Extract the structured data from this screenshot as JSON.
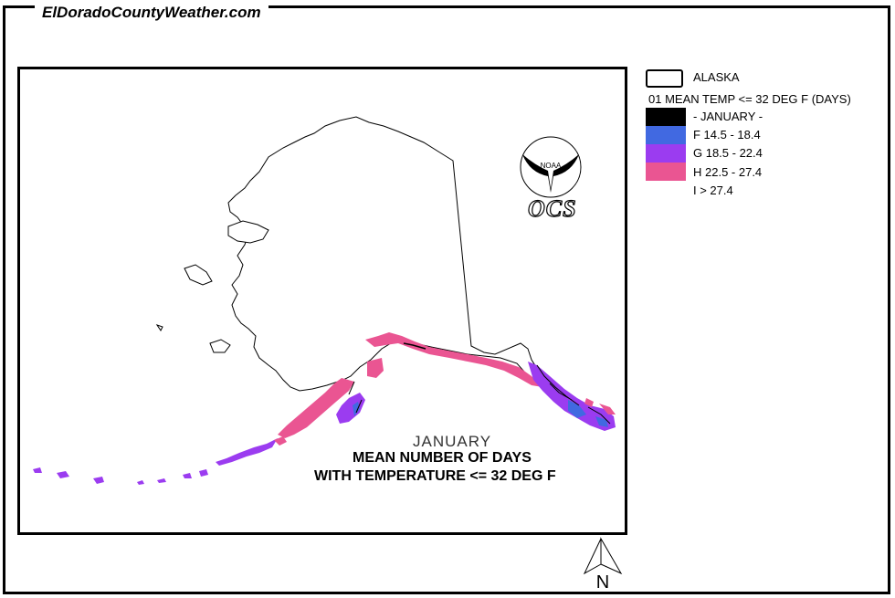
{
  "site_title": "ElDoradoCountyWeather.com",
  "map": {
    "caption_month": "JANUARY",
    "caption_line1": "MEAN NUMBER OF DAYS",
    "caption_line2": "WITH TEMPERATURE <= 32 DEG F",
    "logo_text": "NOAA",
    "logo_sub": "OCS",
    "north_label": "N"
  },
  "legend": {
    "region_label": "ALASKA",
    "title": "01 MEAN TEMP <= 32 DEG F (DAYS)",
    "items": [
      {
        "label": "- JANUARY -",
        "color": "#000000"
      },
      {
        "label": "F 14.5 - 18.4",
        "color": "#4169e1"
      },
      {
        "label": "G 18.5 - 22.4",
        "color": "#9b3cf0"
      },
      {
        "label": "H 22.5 - 27.4",
        "color": "#ea5592"
      },
      {
        "label": "I > 27.4",
        "color": "#ffffff"
      }
    ]
  }
}
